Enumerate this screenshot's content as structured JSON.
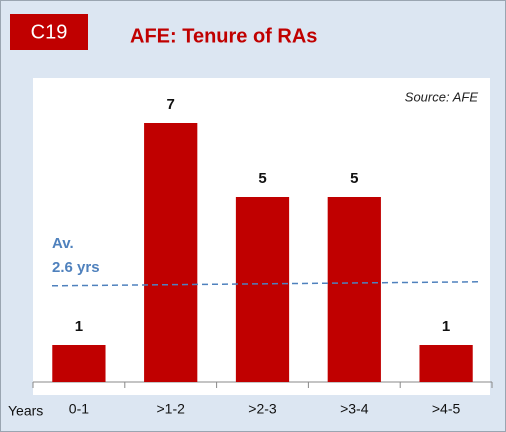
{
  "chart_data": {
    "type": "bar",
    "code": "C19",
    "title": "AFE: Tenure of RAs",
    "source": "Source: AFE",
    "x_label": "Years",
    "categories": [
      "0-1",
      ">1-2",
      ">2-3",
      ">3-4",
      ">4-5"
    ],
    "values": [
      1,
      7,
      5,
      5,
      1
    ],
    "color": "#c00000",
    "ylim": [
      0,
      8
    ],
    "average_line": {
      "value": 2.6,
      "label_lines": [
        "Av.",
        "2.6 yrs"
      ],
      "color": "#4f81bd"
    }
  }
}
